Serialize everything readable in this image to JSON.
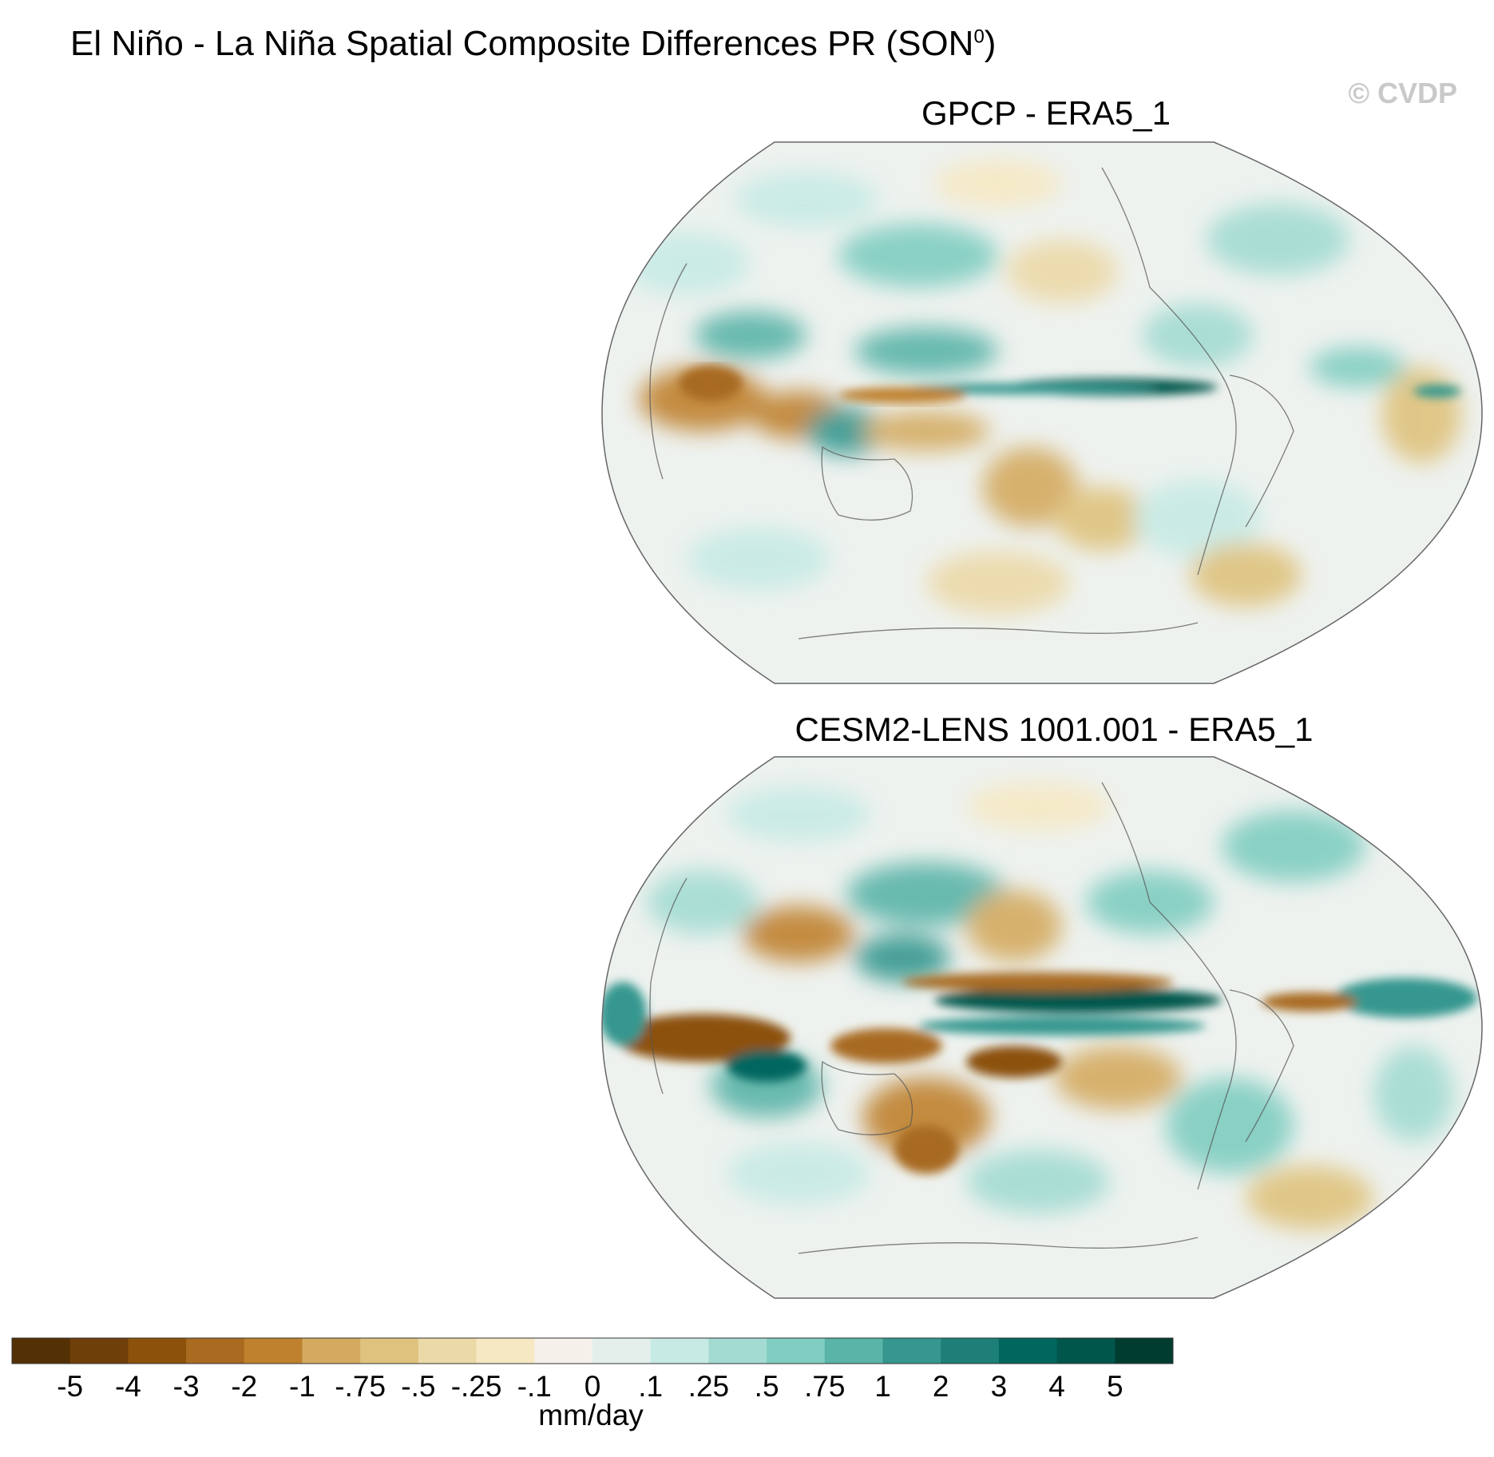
{
  "title": {
    "main": "El Niño - La Niña Spatial Composite Differences PR (SON",
    "superscript": "0",
    "close": ")"
  },
  "watermark": "© CVDP",
  "panels": [
    {
      "title": "GPCP - ERA5_1"
    },
    {
      "title": "CESM2-LENS 1001.001 - ERA5_1"
    }
  ],
  "colorbar": {
    "units": "mm/day",
    "colors": [
      "#543005",
      "#6f3f0a",
      "#8c510a",
      "#a86b20",
      "#bf812d",
      "#d4aa60",
      "#dfc27d",
      "#ecd9a8",
      "#f6e8c3",
      "#f5f1ea",
      "#e4efec",
      "#c7eae5",
      "#a3dbd2",
      "#80cdc1",
      "#5ab4a8",
      "#35978f",
      "#1d7f76",
      "#01665e",
      "#01564c",
      "#003c30"
    ],
    "tick_labels": [
      "-5",
      "-4",
      "-3",
      "-2",
      "-1",
      "-.75",
      "-.5",
      "-.25",
      "-.1",
      "0",
      ".1",
      ".25",
      ".5",
      ".75",
      "1",
      "2",
      "3",
      "4",
      "5"
    ]
  }
}
